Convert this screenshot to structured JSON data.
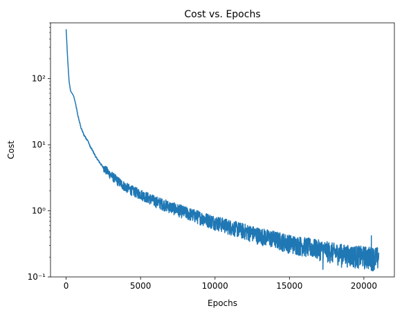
{
  "chart_data": {
    "type": "line",
    "title": "Cost vs. Epochs",
    "xlabel": "Epochs",
    "ylabel": "Cost",
    "yscale": "log",
    "xlim": [
      -1050,
      22050
    ],
    "ylim": [
      0.1,
      700
    ],
    "grid": false,
    "legend": "none",
    "color": "#1f77b4",
    "x_ticks": [
      0,
      5000,
      10000,
      15000,
      20000
    ],
    "x_tick_labels": [
      "0",
      "5000",
      "10000",
      "15000",
      "20000"
    ],
    "y_ticks": [
      0.1,
      1,
      10,
      100
    ],
    "y_tick_labels": [
      "10⁻¹",
      "10⁰",
      "10¹",
      "10²"
    ],
    "series": [
      {
        "x": [
          0,
          100,
          200,
          300,
          400,
          500,
          600,
          700,
          800,
          900,
          1000,
          1200,
          1400,
          1500,
          1600,
          1800,
          2000,
          2500,
          3000,
          3500,
          4000,
          4500,
          5000,
          6000,
          7000,
          8000,
          9000,
          10000,
          11000,
          12000,
          13000,
          14000,
          15000,
          16000,
          17000,
          18000,
          19000,
          20000,
          21000
        ],
        "y": [
          560,
          200,
          90,
          65,
          60,
          55,
          45,
          35,
          27,
          22,
          18,
          14,
          12,
          11,
          9.5,
          8.0,
          6.5,
          4.5,
          3.5,
          2.8,
          2.3,
          2.0,
          1.8,
          1.4,
          1.15,
          0.95,
          0.8,
          0.68,
          0.58,
          0.5,
          0.43,
          0.38,
          0.33,
          0.3,
          0.27,
          0.24,
          0.22,
          0.21,
          0.2
        ]
      }
    ],
    "noise": {
      "start_x": 2500,
      "band_low_ratio": [
        0.85,
        0.6
      ],
      "band_high_ratio": [
        1.15,
        1.4
      ]
    },
    "spikes": [
      {
        "x": 17250,
        "y": 0.13
      },
      {
        "x": 18430,
        "y": 0.31
      },
      {
        "x": 18500,
        "y": 0.14
      },
      {
        "x": 20500,
        "y": 0.42
      },
      {
        "x": 20700,
        "y": 0.13
      }
    ]
  }
}
